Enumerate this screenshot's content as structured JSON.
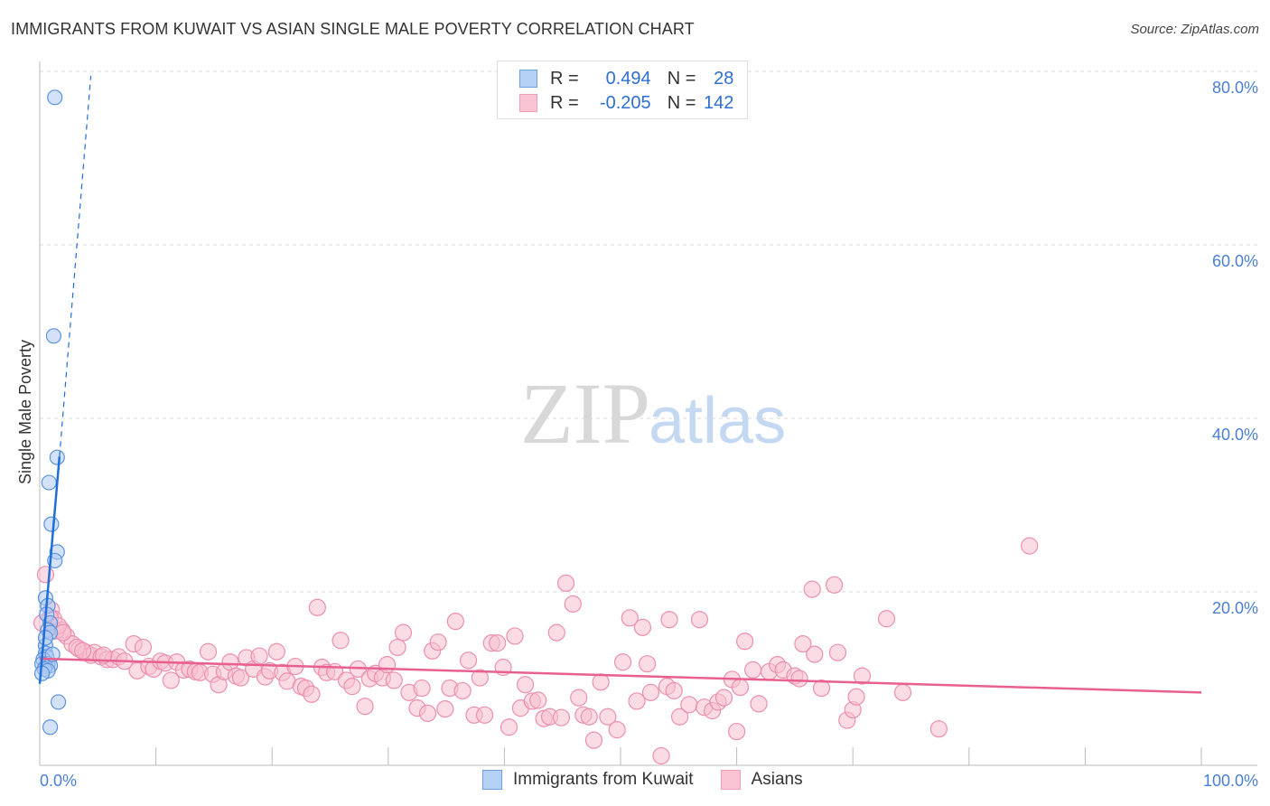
{
  "title": "IMMIGRANTS FROM KUWAIT VS ASIAN SINGLE MALE POVERTY CORRELATION CHART",
  "source": "Source: ZipAtlas.com",
  "watermark": {
    "zip": "ZIP",
    "atlas": "atlas"
  },
  "legend": {
    "rows": [
      {
        "r_label": "R =",
        "r_value": "0.494",
        "n_label": "N =",
        "n_value": "28"
      },
      {
        "r_label": "R =",
        "r_value": "-0.205",
        "n_label": "N =",
        "n_value": "142"
      }
    ]
  },
  "chart_data": {
    "type": "scatter",
    "title": "IMMIGRANTS FROM KUWAIT VS ASIAN SINGLE MALE POVERTY CORRELATION CHART",
    "xlabel": "",
    "ylabel": "Single Male Poverty",
    "xlim": [
      0,
      100
    ],
    "ylim": [
      0,
      80
    ],
    "x_tick_labels": [
      "0.0%",
      "100.0%"
    ],
    "y_ticks": [
      20,
      40,
      60,
      80
    ],
    "y_tick_labels": [
      "20.0%",
      "40.0%",
      "60.0%",
      "80.0%"
    ],
    "grid": true,
    "legend_position": "bottom",
    "colors": {
      "blue_fill": "#aecbf2",
      "blue_stroke": "#5b93e0",
      "blue_line": "#1f6fd8",
      "pink_fill": "#f8c0d0",
      "pink_stroke": "#eb8fae",
      "pink_line": "#e8608f"
    },
    "series": [
      {
        "name": "Immigrants from Kuwait",
        "color": "#5b93e0",
        "r": 0.494,
        "n": 28,
        "trend": {
          "solid": [
            [
              0,
              9.4
            ],
            [
              1.7,
              35.6
            ]
          ],
          "dashed": [
            [
              1.7,
              35.6
            ],
            [
              4.4,
              79.5
            ]
          ]
        },
        "points": [
          [
            1.3,
            77
          ],
          [
            1.2,
            49.5
          ],
          [
            1.5,
            35.5
          ],
          [
            0.8,
            32.6
          ],
          [
            1.0,
            27.8
          ],
          [
            1.5,
            24.6
          ],
          [
            1.3,
            23.6
          ],
          [
            0.5,
            19.3
          ],
          [
            0.7,
            18.4
          ],
          [
            0.6,
            17.4
          ],
          [
            0.9,
            16.4
          ],
          [
            0.7,
            15.6
          ],
          [
            0.9,
            15.3
          ],
          [
            0.5,
            13.8
          ],
          [
            0.5,
            12.9
          ],
          [
            0.6,
            12.5
          ],
          [
            0.3,
            12.2
          ],
          [
            0.7,
            11.7
          ],
          [
            0.5,
            11.4
          ],
          [
            0.2,
            11.7
          ],
          [
            0.9,
            11.5
          ],
          [
            0.4,
            11.1
          ],
          [
            0.7,
            10.9
          ],
          [
            0.2,
            10.6
          ],
          [
            1.6,
            7.3
          ],
          [
            0.9,
            4.4
          ],
          [
            1.1,
            12.8
          ],
          [
            0.5,
            14.7
          ]
        ]
      },
      {
        "name": "Asians",
        "color": "#eb8fae",
        "r": -0.205,
        "n": 142,
        "trend": {
          "solid": [
            [
              0,
              12.3
            ],
            [
              100,
              8.4
            ]
          ]
        },
        "points": [
          [
            0.5,
            22.0
          ],
          [
            1.0,
            17.9
          ],
          [
            1.2,
            16.9
          ],
          [
            1.9,
            15.6
          ],
          [
            2.3,
            14.9
          ],
          [
            1.4,
            15.5
          ],
          [
            2.8,
            14.0
          ],
          [
            3.4,
            13.4
          ],
          [
            4.0,
            13.0
          ],
          [
            4.4,
            12.7
          ],
          [
            4.7,
            13.0
          ],
          [
            5.3,
            12.5
          ],
          [
            5.8,
            12.2
          ],
          [
            6.3,
            12.2
          ],
          [
            6.8,
            12.5
          ],
          [
            7.3,
            12.0
          ],
          [
            8.1,
            14.0
          ],
          [
            8.4,
            10.9
          ],
          [
            8.9,
            13.6
          ],
          [
            9.4,
            11.4
          ],
          [
            9.8,
            11.1
          ],
          [
            10.4,
            12.0
          ],
          [
            10.8,
            11.8
          ],
          [
            11.3,
            9.8
          ],
          [
            11.8,
            11.9
          ],
          [
            12.4,
            11.0
          ],
          [
            12.9,
            11.1
          ],
          [
            13.4,
            10.8
          ],
          [
            13.8,
            10.7
          ],
          [
            14.5,
            13.1
          ],
          [
            14.9,
            10.5
          ],
          [
            15.4,
            9.3
          ],
          [
            15.9,
            10.8
          ],
          [
            16.4,
            11.9
          ],
          [
            16.9,
            10.3
          ],
          [
            17.3,
            10.1
          ],
          [
            17.8,
            12.4
          ],
          [
            18.4,
            11.1
          ],
          [
            18.9,
            12.6
          ],
          [
            19.4,
            10.2
          ],
          [
            19.8,
            10.9
          ],
          [
            20.4,
            13.1
          ],
          [
            20.9,
            10.7
          ],
          [
            21.3,
            9.7
          ],
          [
            22.0,
            11.4
          ],
          [
            22.5,
            9.1
          ],
          [
            22.9,
            8.9
          ],
          [
            23.4,
            8.2
          ],
          [
            23.9,
            18.2
          ],
          [
            24.3,
            11.3
          ],
          [
            24.7,
            10.7
          ],
          [
            25.4,
            10.8
          ],
          [
            25.9,
            14.4
          ],
          [
            26.4,
            9.8
          ],
          [
            26.9,
            9.1
          ],
          [
            27.4,
            11.1
          ],
          [
            28.0,
            6.8
          ],
          [
            28.4,
            10.0
          ],
          [
            28.9,
            10.6
          ],
          [
            29.5,
            10.1
          ],
          [
            29.9,
            11.6
          ],
          [
            30.5,
            9.8
          ],
          [
            30.8,
            13.6
          ],
          [
            31.3,
            15.3
          ],
          [
            31.8,
            8.4
          ],
          [
            32.5,
            6.6
          ],
          [
            32.9,
            8.9
          ],
          [
            33.4,
            6.0
          ],
          [
            33.8,
            13.2
          ],
          [
            34.3,
            14.2
          ],
          [
            34.9,
            6.5
          ],
          [
            35.3,
            8.9
          ],
          [
            35.8,
            16.6
          ],
          [
            36.4,
            8.6
          ],
          [
            36.9,
            12.1
          ],
          [
            37.4,
            5.8
          ],
          [
            37.9,
            10.1
          ],
          [
            38.3,
            5.8
          ],
          [
            38.9,
            14.1
          ],
          [
            39.4,
            14.1
          ],
          [
            39.9,
            11.3
          ],
          [
            40.4,
            4.4
          ],
          [
            40.9,
            14.9
          ],
          [
            41.4,
            6.6
          ],
          [
            41.8,
            9.3
          ],
          [
            42.4,
            7.4
          ],
          [
            42.9,
            7.5
          ],
          [
            43.4,
            5.4
          ],
          [
            43.9,
            5.6
          ],
          [
            44.5,
            15.3
          ],
          [
            44.9,
            5.5
          ],
          [
            45.3,
            21.0
          ],
          [
            45.9,
            18.6
          ],
          [
            46.4,
            7.8
          ],
          [
            46.8,
            5.8
          ],
          [
            47.3,
            5.6
          ],
          [
            47.7,
            2.9
          ],
          [
            48.3,
            9.6
          ],
          [
            48.9,
            5.6
          ],
          [
            49.7,
            4.1
          ],
          [
            50.2,
            11.9
          ],
          [
            50.8,
            17.0
          ],
          [
            51.4,
            7.4
          ],
          [
            51.9,
            15.9
          ],
          [
            52.3,
            11.7
          ],
          [
            52.6,
            8.4
          ],
          [
            53.5,
            1.1
          ],
          [
            54.0,
            9.1
          ],
          [
            54.2,
            16.8
          ],
          [
            54.6,
            8.6
          ],
          [
            55.1,
            5.6
          ],
          [
            55.9,
            7.0
          ],
          [
            56.8,
            16.8
          ],
          [
            57.2,
            6.7
          ],
          [
            57.9,
            6.3
          ],
          [
            58.4,
            7.3
          ],
          [
            58.9,
            7.8
          ],
          [
            59.6,
            9.9
          ],
          [
            60.0,
            3.9
          ],
          [
            60.3,
            9.0
          ],
          [
            60.7,
            14.3
          ],
          [
            61.4,
            11.0
          ],
          [
            61.9,
            7.1
          ],
          [
            62.8,
            10.8
          ],
          [
            63.5,
            11.6
          ],
          [
            64.0,
            11.0
          ],
          [
            65.0,
            10.3
          ],
          [
            65.4,
            10.0
          ],
          [
            65.7,
            14.0
          ],
          [
            66.5,
            20.3
          ],
          [
            66.7,
            12.8
          ],
          [
            67.3,
            8.9
          ],
          [
            68.4,
            20.8
          ],
          [
            68.7,
            13.0
          ],
          [
            69.5,
            5.2
          ],
          [
            70.0,
            6.4
          ],
          [
            70.3,
            7.9
          ],
          [
            70.8,
            10.3
          ],
          [
            72.9,
            16.9
          ],
          [
            74.3,
            8.4
          ],
          [
            77.4,
            4.2
          ],
          [
            85.2,
            25.3
          ],
          [
            0.2,
            16.4
          ],
          [
            0.9,
            17.0
          ],
          [
            1.6,
            16.1
          ],
          [
            2.0,
            15.3
          ],
          [
            3.2,
            13.6
          ],
          [
            3.7,
            13.2
          ],
          [
            5.5,
            12.7
          ]
        ]
      }
    ]
  }
}
